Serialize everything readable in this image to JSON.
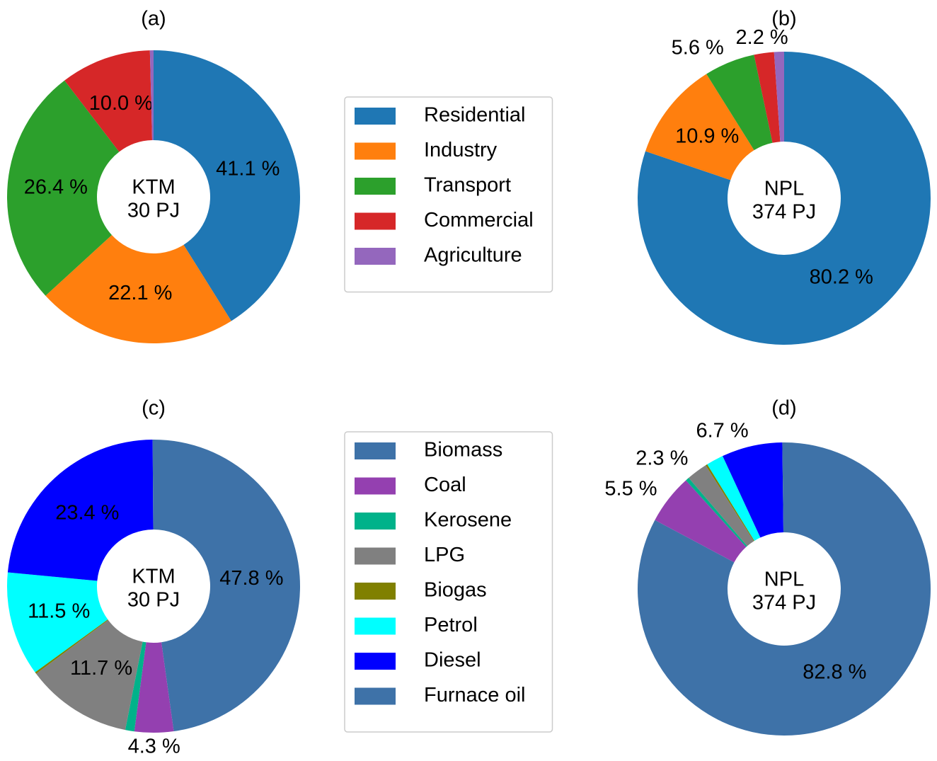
{
  "chart_data": [
    {
      "type": "pie",
      "title": "(a)",
      "center_label": [
        "KTM",
        "30 PJ"
      ],
      "categories": [
        "Residential",
        "Industry",
        "Transport",
        "Commercial",
        "Agriculture"
      ],
      "values": [
        41.1,
        22.1,
        26.4,
        10.0,
        0.4
      ],
      "value_labels": [
        "41.1 %",
        "22.1 %",
        "26.4 %",
        "10.0 %",
        null
      ],
      "colors": [
        "#1f77b4",
        "#ff7f0e",
        "#2ca02c",
        "#d62728",
        "#9467bd"
      ],
      "legend": true
    },
    {
      "type": "pie",
      "title": "(b)",
      "center_label": [
        "NPL",
        "374 PJ"
      ],
      "categories": [
        "Residential",
        "Industry",
        "Transport",
        "Commercial",
        "Agriculture"
      ],
      "values": [
        80.2,
        10.9,
        5.6,
        2.2,
        1.1
      ],
      "value_labels": [
        "80.2 %",
        "10.9 %",
        "5.6 %",
        "2.2 %",
        null
      ],
      "colors": [
        "#1f77b4",
        "#ff7f0e",
        "#2ca02c",
        "#d62728",
        "#9467bd"
      ],
      "legend": false
    },
    {
      "type": "pie",
      "title": "(c)",
      "center_label": [
        "KTM",
        "30 PJ"
      ],
      "categories": [
        "Biomass",
        "Coal",
        "Kerosene",
        "LPG",
        "Biogas",
        "Petrol",
        "Diesel",
        "Furnace oil"
      ],
      "values": [
        47.8,
        4.3,
        1.0,
        11.7,
        0.2,
        11.5,
        23.4,
        0.1
      ],
      "value_labels": [
        "47.8 %",
        "4.3 %",
        null,
        "11.7 %",
        null,
        "11.5 %",
        "23.4 %",
        null
      ],
      "colors": [
        "#3e72a8",
        "#9440b0",
        "#00b28a",
        "#808080",
        "#808000",
        "#00ffff",
        "#0000ff",
        "#3e72a8"
      ],
      "legend": true
    },
    {
      "type": "pie",
      "title": "(d)",
      "center_label": [
        "NPL",
        "374 PJ"
      ],
      "categories": [
        "Biomass",
        "Coal",
        "Kerosene",
        "LPG",
        "Biogas",
        "Petrol",
        "Diesel",
        "Furnace oil"
      ],
      "values": [
        82.8,
        5.5,
        0.4,
        2.3,
        0.2,
        1.9,
        6.7,
        0.2
      ],
      "value_labels": [
        "82.8 %",
        "5.5 %",
        null,
        "2.3 %",
        null,
        null,
        "6.7 %",
        null
      ],
      "colors": [
        "#3e72a8",
        "#9440b0",
        "#00b28a",
        "#808080",
        "#808000",
        "#00ffff",
        "#0000ff",
        "#3e72a8"
      ],
      "legend": false
    }
  ]
}
